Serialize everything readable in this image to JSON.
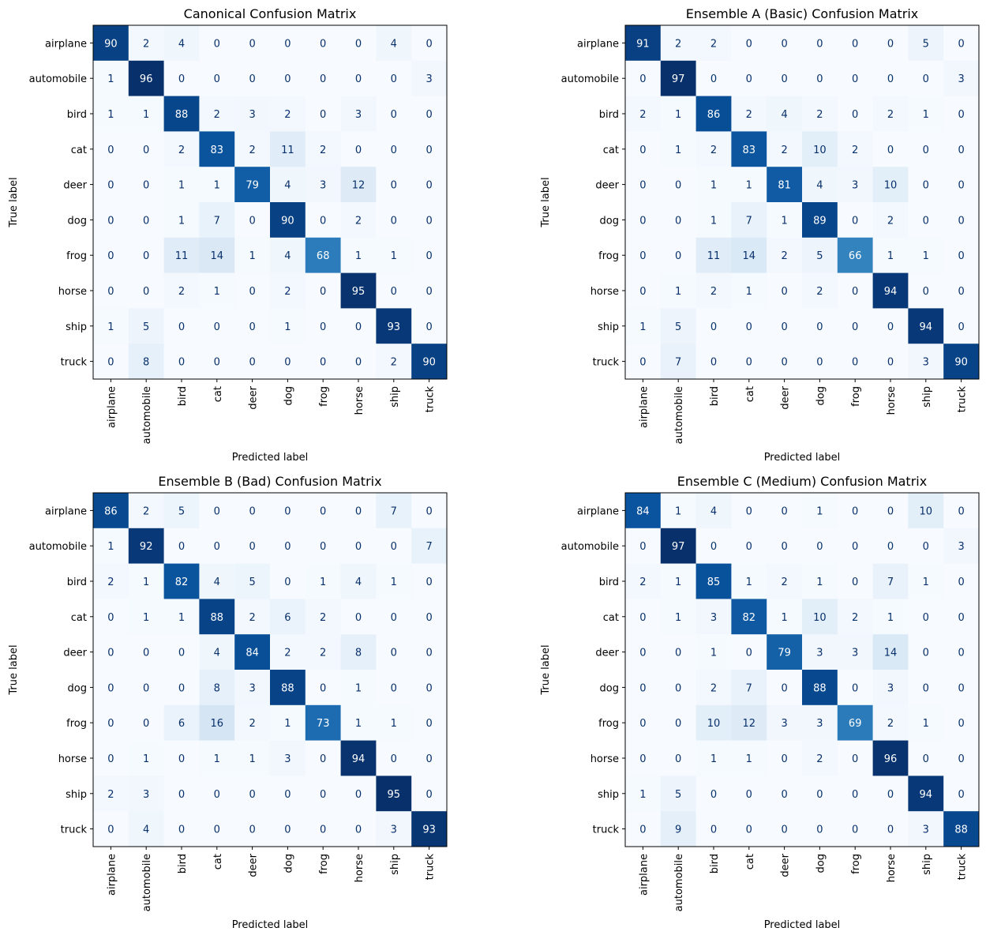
{
  "chart_data": [
    {
      "type": "heatmap",
      "title": "Canonical Confusion Matrix",
      "xlabel": "Predicted label",
      "ylabel": "True label",
      "colormap": "Blues",
      "categories": [
        "airplane",
        "automobile",
        "bird",
        "cat",
        "deer",
        "dog",
        "frog",
        "horse",
        "ship",
        "truck"
      ],
      "values": [
        [
          90,
          2,
          4,
          0,
          0,
          0,
          0,
          0,
          4,
          0
        ],
        [
          1,
          96,
          0,
          0,
          0,
          0,
          0,
          0,
          0,
          3
        ],
        [
          1,
          1,
          88,
          2,
          3,
          2,
          0,
          3,
          0,
          0
        ],
        [
          0,
          0,
          2,
          83,
          2,
          11,
          2,
          0,
          0,
          0
        ],
        [
          0,
          0,
          1,
          1,
          79,
          4,
          3,
          12,
          0,
          0
        ],
        [
          0,
          0,
          1,
          7,
          0,
          90,
          0,
          2,
          0,
          0
        ],
        [
          0,
          0,
          11,
          14,
          1,
          4,
          68,
          1,
          1,
          0
        ],
        [
          0,
          0,
          2,
          1,
          0,
          2,
          0,
          95,
          0,
          0
        ],
        [
          1,
          5,
          0,
          0,
          0,
          1,
          0,
          0,
          93,
          0
        ],
        [
          0,
          8,
          0,
          0,
          0,
          0,
          0,
          0,
          2,
          90
        ]
      ]
    },
    {
      "type": "heatmap",
      "title": "Ensemble A (Basic) Confusion Matrix",
      "xlabel": "Predicted label",
      "ylabel": "True label",
      "colormap": "Blues",
      "categories": [
        "airplane",
        "automobile",
        "bird",
        "cat",
        "deer",
        "dog",
        "frog",
        "horse",
        "ship",
        "truck"
      ],
      "values": [
        [
          91,
          2,
          2,
          0,
          0,
          0,
          0,
          0,
          5,
          0
        ],
        [
          0,
          97,
          0,
          0,
          0,
          0,
          0,
          0,
          0,
          3
        ],
        [
          2,
          1,
          86,
          2,
          4,
          2,
          0,
          2,
          1,
          0
        ],
        [
          0,
          1,
          2,
          83,
          2,
          10,
          2,
          0,
          0,
          0
        ],
        [
          0,
          0,
          1,
          1,
          81,
          4,
          3,
          10,
          0,
          0
        ],
        [
          0,
          0,
          1,
          7,
          1,
          89,
          0,
          2,
          0,
          0
        ],
        [
          0,
          0,
          11,
          14,
          2,
          5,
          66,
          1,
          1,
          0
        ],
        [
          0,
          1,
          2,
          1,
          0,
          2,
          0,
          94,
          0,
          0
        ],
        [
          1,
          5,
          0,
          0,
          0,
          0,
          0,
          0,
          94,
          0
        ],
        [
          0,
          7,
          0,
          0,
          0,
          0,
          0,
          0,
          3,
          90
        ]
      ]
    },
    {
      "type": "heatmap",
      "title": "Ensemble B (Bad) Confusion Matrix",
      "xlabel": "Predicted label",
      "ylabel": "True label",
      "colormap": "Blues",
      "categories": [
        "airplane",
        "automobile",
        "bird",
        "cat",
        "deer",
        "dog",
        "frog",
        "horse",
        "ship",
        "truck"
      ],
      "values": [
        [
          86,
          2,
          5,
          0,
          0,
          0,
          0,
          0,
          7,
          0
        ],
        [
          1,
          92,
          0,
          0,
          0,
          0,
          0,
          0,
          0,
          7
        ],
        [
          2,
          1,
          82,
          4,
          5,
          0,
          1,
          4,
          1,
          0
        ],
        [
          0,
          1,
          1,
          88,
          2,
          6,
          2,
          0,
          0,
          0
        ],
        [
          0,
          0,
          0,
          4,
          84,
          2,
          2,
          8,
          0,
          0
        ],
        [
          0,
          0,
          0,
          8,
          3,
          88,
          0,
          1,
          0,
          0
        ],
        [
          0,
          0,
          6,
          16,
          2,
          1,
          73,
          1,
          1,
          0
        ],
        [
          0,
          1,
          0,
          1,
          1,
          3,
          0,
          94,
          0,
          0
        ],
        [
          2,
          3,
          0,
          0,
          0,
          0,
          0,
          0,
          95,
          0
        ],
        [
          0,
          4,
          0,
          0,
          0,
          0,
          0,
          0,
          3,
          93
        ]
      ]
    },
    {
      "type": "heatmap",
      "title": "Ensemble C (Medium) Confusion Matrix",
      "xlabel": "Predicted label",
      "ylabel": "True label",
      "colormap": "Blues",
      "categories": [
        "airplane",
        "automobile",
        "bird",
        "cat",
        "deer",
        "dog",
        "frog",
        "horse",
        "ship",
        "truck"
      ],
      "values": [
        [
          84,
          1,
          4,
          0,
          0,
          1,
          0,
          0,
          10,
          0
        ],
        [
          0,
          97,
          0,
          0,
          0,
          0,
          0,
          0,
          0,
          3
        ],
        [
          2,
          1,
          85,
          1,
          2,
          1,
          0,
          7,
          1,
          0
        ],
        [
          0,
          1,
          3,
          82,
          1,
          10,
          2,
          1,
          0,
          0
        ],
        [
          0,
          0,
          1,
          0,
          79,
          3,
          3,
          14,
          0,
          0
        ],
        [
          0,
          0,
          2,
          7,
          0,
          88,
          0,
          3,
          0,
          0
        ],
        [
          0,
          0,
          10,
          12,
          3,
          3,
          69,
          2,
          1,
          0
        ],
        [
          0,
          0,
          1,
          1,
          0,
          2,
          0,
          96,
          0,
          0
        ],
        [
          1,
          5,
          0,
          0,
          0,
          0,
          0,
          0,
          94,
          0
        ],
        [
          0,
          9,
          0,
          0,
          0,
          0,
          0,
          0,
          3,
          88
        ]
      ]
    }
  ]
}
